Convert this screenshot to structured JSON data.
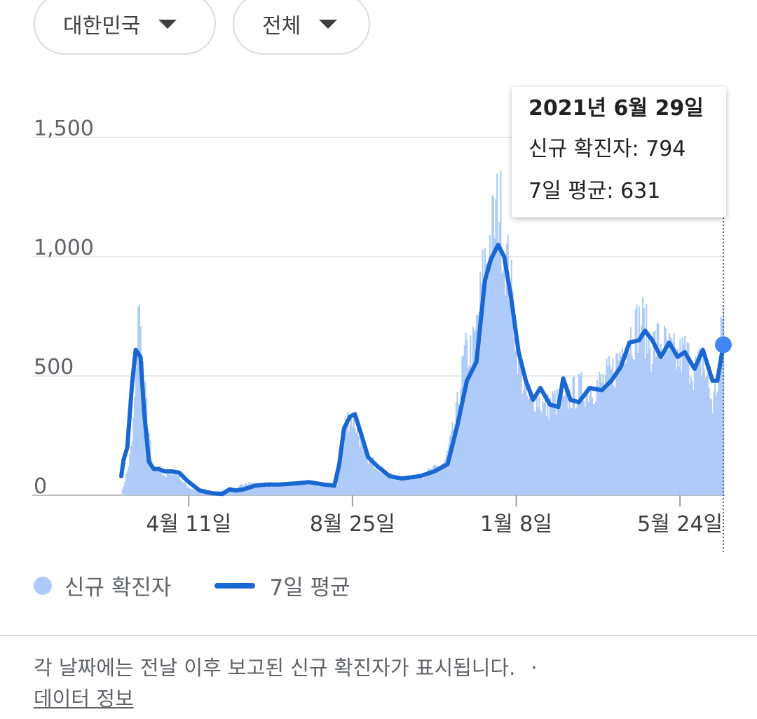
{
  "filters": {
    "region": {
      "label": "대한민국"
    },
    "scope": {
      "label": "전체"
    }
  },
  "tooltip": {
    "date": "2021년 6월 29일",
    "cases_label": "신규 확진자:",
    "cases_value": "794",
    "avg_label": "7일 평균:",
    "avg_value": "631"
  },
  "legend": {
    "bars": "신규 확진자",
    "line": "7일 평균"
  },
  "footer": {
    "note": "각 날짜에는 전날 이후 보고된 신규 확진자가 표시됩니다.",
    "separator": "·",
    "link": "데이터 정보"
  },
  "colors": {
    "bars": "#aecbfa",
    "line": "#1967d2",
    "point": "#4285f4"
  },
  "chart_data": {
    "type": "bar",
    "ylim": [
      0,
      1500
    ],
    "yticks": [
      0,
      500,
      1000,
      1500
    ],
    "ytick_labels": [
      "0",
      "500",
      "1,000",
      "1,500"
    ],
    "x_start": "2020-02-15",
    "x_end": "2021-06-29",
    "xticks": [
      {
        "date": "2020-04-11",
        "label": "4월 11일"
      },
      {
        "date": "2020-08-25",
        "label": "8월 25일"
      },
      {
        "date": "2021-01-08",
        "label": "1월 8일"
      },
      {
        "date": "2021-05-24",
        "label": "5월 24일"
      }
    ],
    "series": [
      {
        "name": "신규 확진자",
        "type": "bar",
        "points": [
          [
            "2020-02-15",
            5
          ],
          [
            "2020-02-20",
            100
          ],
          [
            "2020-02-24",
            220
          ],
          [
            "2020-02-27",
            480
          ],
          [
            "2020-02-29",
            830
          ],
          [
            "2020-03-02",
            660
          ],
          [
            "2020-03-05",
            460
          ],
          [
            "2020-03-08",
            320
          ],
          [
            "2020-03-11",
            140
          ],
          [
            "2020-03-14",
            100
          ],
          [
            "2020-03-18",
            110
          ],
          [
            "2020-03-23",
            80
          ],
          [
            "2020-03-28",
            100
          ],
          [
            "2020-04-02",
            90
          ],
          [
            "2020-04-07",
            50
          ],
          [
            "2020-04-12",
            30
          ],
          [
            "2020-04-20",
            12
          ],
          [
            "2020-05-01",
            6
          ],
          [
            "2020-05-10",
            25
          ],
          [
            "2020-05-20",
            20
          ],
          [
            "2020-05-28",
            55
          ],
          [
            "2020-06-10",
            45
          ],
          [
            "2020-06-25",
            50
          ],
          [
            "2020-07-10",
            50
          ],
          [
            "2020-07-25",
            45
          ],
          [
            "2020-08-05",
            35
          ],
          [
            "2020-08-12",
            45
          ],
          [
            "2020-08-16",
            250
          ],
          [
            "2020-08-20",
            320
          ],
          [
            "2020-08-26",
            320
          ],
          [
            "2020-08-31",
            240
          ],
          [
            "2020-09-05",
            170
          ],
          [
            "2020-09-15",
            120
          ],
          [
            "2020-09-25",
            80
          ],
          [
            "2020-10-05",
            70
          ],
          [
            "2020-10-20",
            80
          ],
          [
            "2020-11-01",
            110
          ],
          [
            "2020-11-10",
            140
          ],
          [
            "2020-11-18",
            300
          ],
          [
            "2020-11-26",
            580
          ],
          [
            "2020-12-04",
            620
          ],
          [
            "2020-12-12",
            950
          ],
          [
            "2020-12-18",
            1080
          ],
          [
            "2020-12-25",
            1230
          ],
          [
            "2020-12-29",
            1040
          ],
          [
            "2021-01-03",
            900
          ],
          [
            "2021-01-08",
            650
          ],
          [
            "2021-01-12",
            510
          ],
          [
            "2021-01-18",
            390
          ],
          [
            "2021-01-25",
            420
          ],
          [
            "2021-02-01",
            360
          ],
          [
            "2021-02-08",
            400
          ],
          [
            "2021-02-15",
            370
          ],
          [
            "2021-02-22",
            420
          ],
          [
            "2021-03-01",
            440
          ],
          [
            "2021-03-10",
            450
          ],
          [
            "2021-03-20",
            470
          ],
          [
            "2021-03-30",
            520
          ],
          [
            "2021-04-08",
            650
          ],
          [
            "2021-04-15",
            680
          ],
          [
            "2021-04-22",
            740
          ],
          [
            "2021-04-30",
            620
          ],
          [
            "2021-05-07",
            650
          ],
          [
            "2021-05-15",
            600
          ],
          [
            "2021-05-22",
            570
          ],
          [
            "2021-05-28",
            600
          ],
          [
            "2021-06-05",
            520
          ],
          [
            "2021-06-12",
            560
          ],
          [
            "2021-06-20",
            380
          ],
          [
            "2021-06-25",
            500
          ],
          [
            "2021-06-29",
            794
          ]
        ]
      },
      {
        "name": "7일 평균",
        "type": "line",
        "points": [
          [
            "2020-02-15",
            80
          ],
          [
            "2020-02-17",
            150
          ],
          [
            "2020-02-20",
            200
          ],
          [
            "2020-02-24",
            470
          ],
          [
            "2020-02-27",
            610
          ],
          [
            "2020-03-02",
            580
          ],
          [
            "2020-03-05",
            350
          ],
          [
            "2020-03-09",
            140
          ],
          [
            "2020-03-13",
            110
          ],
          [
            "2020-03-17",
            110
          ],
          [
            "2020-03-22",
            100
          ],
          [
            "2020-03-28",
            100
          ],
          [
            "2020-04-03",
            95
          ],
          [
            "2020-04-10",
            60
          ],
          [
            "2020-04-20",
            20
          ],
          [
            "2020-05-01",
            8
          ],
          [
            "2020-05-09",
            5
          ],
          [
            "2020-05-15",
            25
          ],
          [
            "2020-05-20",
            20
          ],
          [
            "2020-05-27",
            25
          ],
          [
            "2020-06-05",
            40
          ],
          [
            "2020-06-15",
            45
          ],
          [
            "2020-06-25",
            45
          ],
          [
            "2020-07-10",
            50
          ],
          [
            "2020-07-20",
            55
          ],
          [
            "2020-08-01",
            45
          ],
          [
            "2020-08-10",
            40
          ],
          [
            "2020-08-14",
            130
          ],
          [
            "2020-08-18",
            280
          ],
          [
            "2020-08-23",
            330
          ],
          [
            "2020-08-27",
            340
          ],
          [
            "2020-09-01",
            260
          ],
          [
            "2020-09-07",
            160
          ],
          [
            "2020-09-15",
            120
          ],
          [
            "2020-09-25",
            80
          ],
          [
            "2020-10-05",
            70
          ],
          [
            "2020-10-20",
            80
          ],
          [
            "2020-11-01",
            100
          ],
          [
            "2020-11-12",
            130
          ],
          [
            "2020-11-20",
            290
          ],
          [
            "2020-11-28",
            480
          ],
          [
            "2020-12-06",
            560
          ],
          [
            "2020-12-13",
            900
          ],
          [
            "2020-12-18",
            990
          ],
          [
            "2020-12-24",
            1050
          ],
          [
            "2020-12-29",
            1000
          ],
          [
            "2021-01-04",
            820
          ],
          [
            "2021-01-10",
            600
          ],
          [
            "2021-01-16",
            480
          ],
          [
            "2021-01-22",
            400
          ],
          [
            "2021-01-28",
            450
          ],
          [
            "2021-02-05",
            380
          ],
          [
            "2021-02-12",
            370
          ],
          [
            "2021-02-16",
            490
          ],
          [
            "2021-02-22",
            400
          ],
          [
            "2021-03-01",
            390
          ],
          [
            "2021-03-10",
            450
          ],
          [
            "2021-03-20",
            440
          ],
          [
            "2021-03-28",
            480
          ],
          [
            "2021-04-05",
            540
          ],
          [
            "2021-04-12",
            640
          ],
          [
            "2021-04-20",
            650
          ],
          [
            "2021-04-25",
            690
          ],
          [
            "2021-05-01",
            650
          ],
          [
            "2021-05-08",
            580
          ],
          [
            "2021-05-15",
            640
          ],
          [
            "2021-05-22",
            580
          ],
          [
            "2021-05-28",
            600
          ],
          [
            "2021-06-05",
            530
          ],
          [
            "2021-06-12",
            610
          ],
          [
            "2021-06-20",
            480
          ],
          [
            "2021-06-24",
            480
          ],
          [
            "2021-06-29",
            631
          ]
        ]
      }
    ],
    "highlight": {
      "date": "2021-06-29",
      "series": "7일 평균",
      "value": 631
    }
  }
}
